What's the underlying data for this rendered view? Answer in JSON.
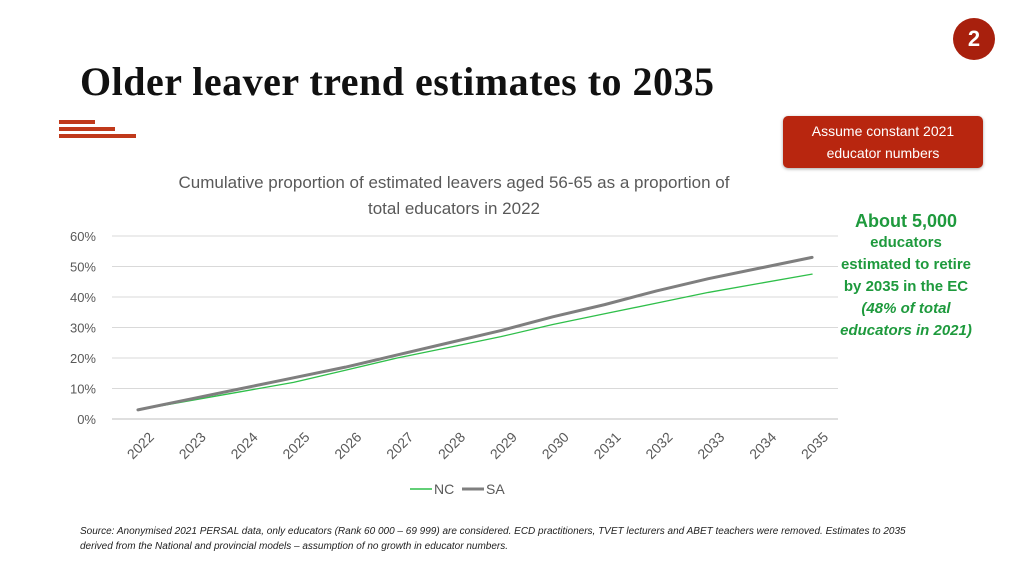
{
  "page_number": "2",
  "title": "Older leaver trend estimates to 2035",
  "callout": {
    "line1": "Assume constant 2021",
    "line2": "educator numbers"
  },
  "retire_note": {
    "line1": "About 5,000",
    "line2": "educators",
    "line3": "estimated to retire",
    "line4": "by 2035 in the EC",
    "line5": "(48% of total",
    "line6": "educators in 2021)"
  },
  "source": {
    "line1": "Source: Anonymised 2021 PERSAL data, only educators (Rank 60 000 – 69 999) are considered. ECD practitioners, TVET lecturers and ABET teachers were removed. Estimates to 2035",
    "line2": "derived from the National and provincial models – assumption of no growth in educator numbers."
  },
  "colors": {
    "accent": "#a8200d",
    "callout_bg": "#b8260f",
    "highlight_text": "#1e9a3d",
    "nc_line": "#2fbf4a",
    "sa_line": "#7f7f7f"
  },
  "chart_data": {
    "type": "line",
    "title_line1": "Cumulative proportion of estimated leavers aged 56-65 as a proportion of",
    "title_line2": "total educators in 2022",
    "xlabel": "",
    "ylabel": "",
    "categories": [
      "2022",
      "2023",
      "2024",
      "2025",
      "2026",
      "2027",
      "2028",
      "2029",
      "2030",
      "2031",
      "2032",
      "2033",
      "2034",
      "2035"
    ],
    "y_ticks": [
      "0%",
      "10%",
      "20%",
      "30%",
      "40%",
      "50%",
      "60%"
    ],
    "ylim": [
      0,
      60
    ],
    "grid": true,
    "legend_position": "bottom",
    "series": [
      {
        "name": "NC",
        "color": "#2fbf4a",
        "values": [
          3,
          6,
          9,
          12,
          16,
          20,
          23.5,
          27,
          31,
          34.5,
          38,
          41.5,
          44.5,
          47.5
        ]
      },
      {
        "name": "SA",
        "color": "#7f7f7f",
        "values": [
          3,
          6.5,
          10,
          13.5,
          17,
          21,
          25,
          29,
          33.5,
          37.5,
          42,
          46,
          49.5,
          53
        ]
      }
    ]
  }
}
